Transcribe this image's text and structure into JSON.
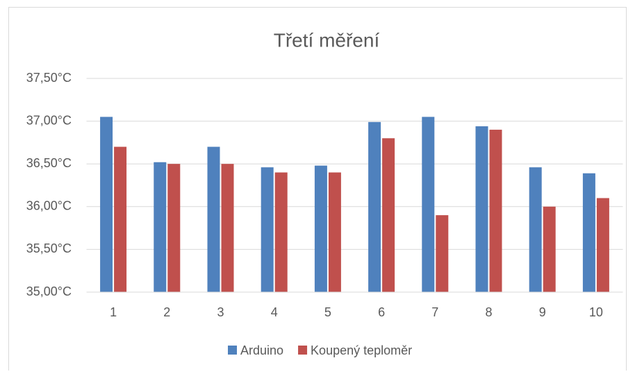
{
  "chart_data": {
    "type": "bar",
    "title": "Třetí měření",
    "categories": [
      "1",
      "2",
      "3",
      "4",
      "5",
      "6",
      "7",
      "8",
      "9",
      "10"
    ],
    "series": [
      {
        "name": "Arduino",
        "color": "#4f81bd",
        "values": [
          37.05,
          36.52,
          36.7,
          36.46,
          36.48,
          36.99,
          37.05,
          36.94,
          36.46,
          36.39
        ]
      },
      {
        "name": "Koupený teploměr",
        "color": "#c0504d",
        "values": [
          36.7,
          36.5,
          36.5,
          36.4,
          36.4,
          36.8,
          35.9,
          36.9,
          36.0,
          36.1
        ]
      }
    ],
    "ylim": [
      35,
      37.5
    ],
    "yticks": [
      {
        "value": 35,
        "label": "35,00°C"
      },
      {
        "value": 35.5,
        "label": "35,50°C"
      },
      {
        "value": 36,
        "label": "36,00°C"
      },
      {
        "value": 36.5,
        "label": "36,50°C"
      },
      {
        "value": 37,
        "label": "37,00°C"
      },
      {
        "value": 37.5,
        "label": "37,50°C"
      }
    ],
    "grid": true,
    "legend": "bottom"
  }
}
